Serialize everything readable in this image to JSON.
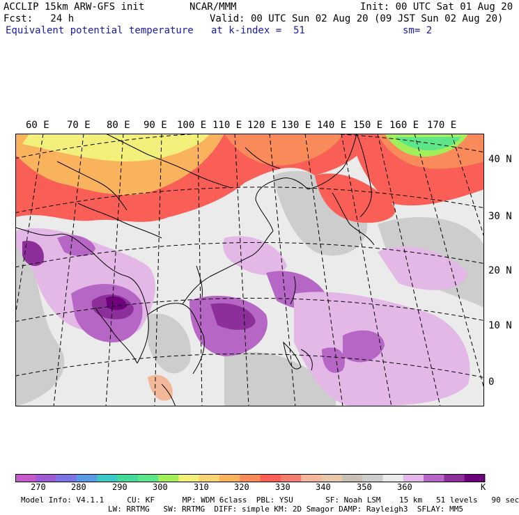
{
  "header": {
    "model": "ACCLIP 15km ARW-GFS init",
    "org": "NCAR/MMM",
    "init": "Init: 00 UTC Sat 01 Aug 20",
    "fcst": "Fcst:   24 h",
    "valid": "Valid: 00 UTC Sun 02 Aug 20 (09 JST Sun 02 Aug 20)",
    "field": "Equivalent potential temperature",
    "level": "at k-index =  51",
    "smooth": "sm= 2"
  },
  "map": {
    "lon_labels": [
      "60 E",
      "70 E",
      "80 E",
      "90 E",
      "100 E",
      "110 E",
      "120 E",
      "130 E",
      "140 E",
      "150 E",
      "160 E",
      "170 E"
    ],
    "lat_labels": [
      "40 N",
      "30 N",
      "20 N",
      "10 N",
      "0"
    ],
    "colors": {
      "coast": "#000000",
      "grid": "#000000",
      "background": "#ebebeb"
    }
  },
  "colorbar": {
    "colors": [
      "#c65ac9",
      "#9f5ad6",
      "#7d74e6",
      "#5a99e3",
      "#3cc8c4",
      "#45d99a",
      "#5de58a",
      "#a3ef5a",
      "#f2f07a",
      "#f7d575",
      "#f9b35d",
      "#f98a5a",
      "#fa5f57",
      "#f27e72",
      "#f3b799",
      "#e9c7aa",
      "#c9c0b4",
      "#cdcdcd",
      "#ebebeb",
      "#e3b7e6",
      "#b666c4",
      "#8d2f9a",
      "#6f007c"
    ],
    "labels": [
      "270",
      "280",
      "290",
      "300",
      "310",
      "320",
      "330",
      "340",
      "350",
      "360"
    ],
    "unit": "K"
  },
  "footer": {
    "line1": "Model Info: V4.1.1     CU: KF      MP: WDM 6class  PBL: YSU       SF: Noah LSM    15 km   51 levels   90 sec",
    "line2": "LW: RRTMG   SW: RRTMG  DIFF: simple KM: 2D Smagor DAMP: Rayleigh3  SFLAY: MM5"
  }
}
